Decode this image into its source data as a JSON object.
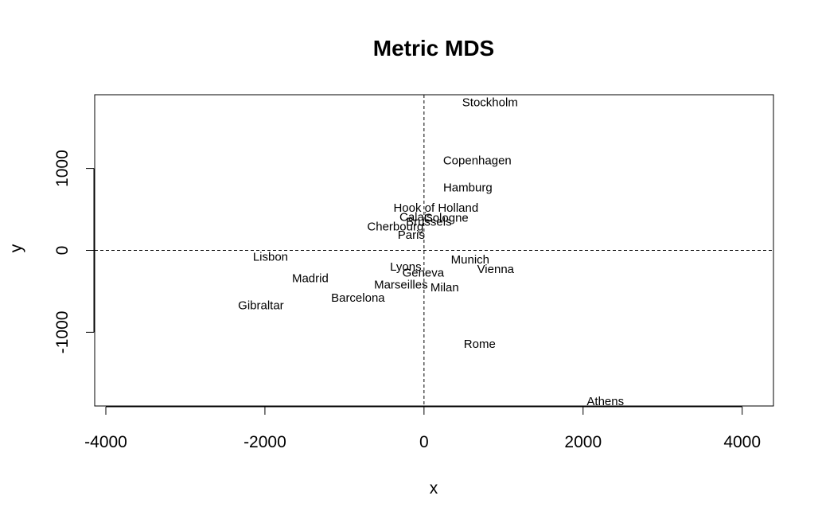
{
  "chart_data": {
    "type": "scatter",
    "title": "Metric MDS",
    "xlabel": "x",
    "ylabel": "y",
    "xlim": [
      -4000,
      4000
    ],
    "ylim": [
      -1900,
      1900
    ],
    "xticks": [
      -4000,
      -2000,
      0,
      2000,
      4000
    ],
    "yticks": [
      -1000,
      0,
      1000
    ],
    "reference_lines": {
      "x": 0,
      "y": 0,
      "style": "dashed"
    },
    "grid": false,
    "legend": "none",
    "points": [
      {
        "label": "Stockholm",
        "x": 830,
        "y": 1810
      },
      {
        "label": "Copenhagen",
        "x": 670,
        "y": 1100
      },
      {
        "label": "Hamburg",
        "x": 550,
        "y": 770
      },
      {
        "label": "Hook of Holland",
        "x": 150,
        "y": 520
      },
      {
        "label": "Calais",
        "x": -100,
        "y": 410
      },
      {
        "label": "Cologne",
        "x": 280,
        "y": 400
      },
      {
        "label": "Brussels",
        "x": 60,
        "y": 350
      },
      {
        "label": "Cherbourg",
        "x": -360,
        "y": 290
      },
      {
        "label": "Paris",
        "x": -160,
        "y": 190
      },
      {
        "label": "Lisbon",
        "x": -1930,
        "y": -80
      },
      {
        "label": "Munich",
        "x": 580,
        "y": -110
      },
      {
        "label": "Lyons",
        "x": -230,
        "y": -200
      },
      {
        "label": "Geneva",
        "x": -10,
        "y": -270
      },
      {
        "label": "Vienna",
        "x": 900,
        "y": -230
      },
      {
        "label": "Madrid",
        "x": -1430,
        "y": -340
      },
      {
        "label": "Marseilles",
        "x": -290,
        "y": -420
      },
      {
        "label": "Milan",
        "x": 260,
        "y": -450
      },
      {
        "label": "Barcelona",
        "x": -830,
        "y": -580
      },
      {
        "label": "Gibraltar",
        "x": -2050,
        "y": -670
      },
      {
        "label": "Rome",
        "x": 700,
        "y": -1140
      },
      {
        "label": "Athens",
        "x": 2280,
        "y": -1840
      }
    ]
  }
}
